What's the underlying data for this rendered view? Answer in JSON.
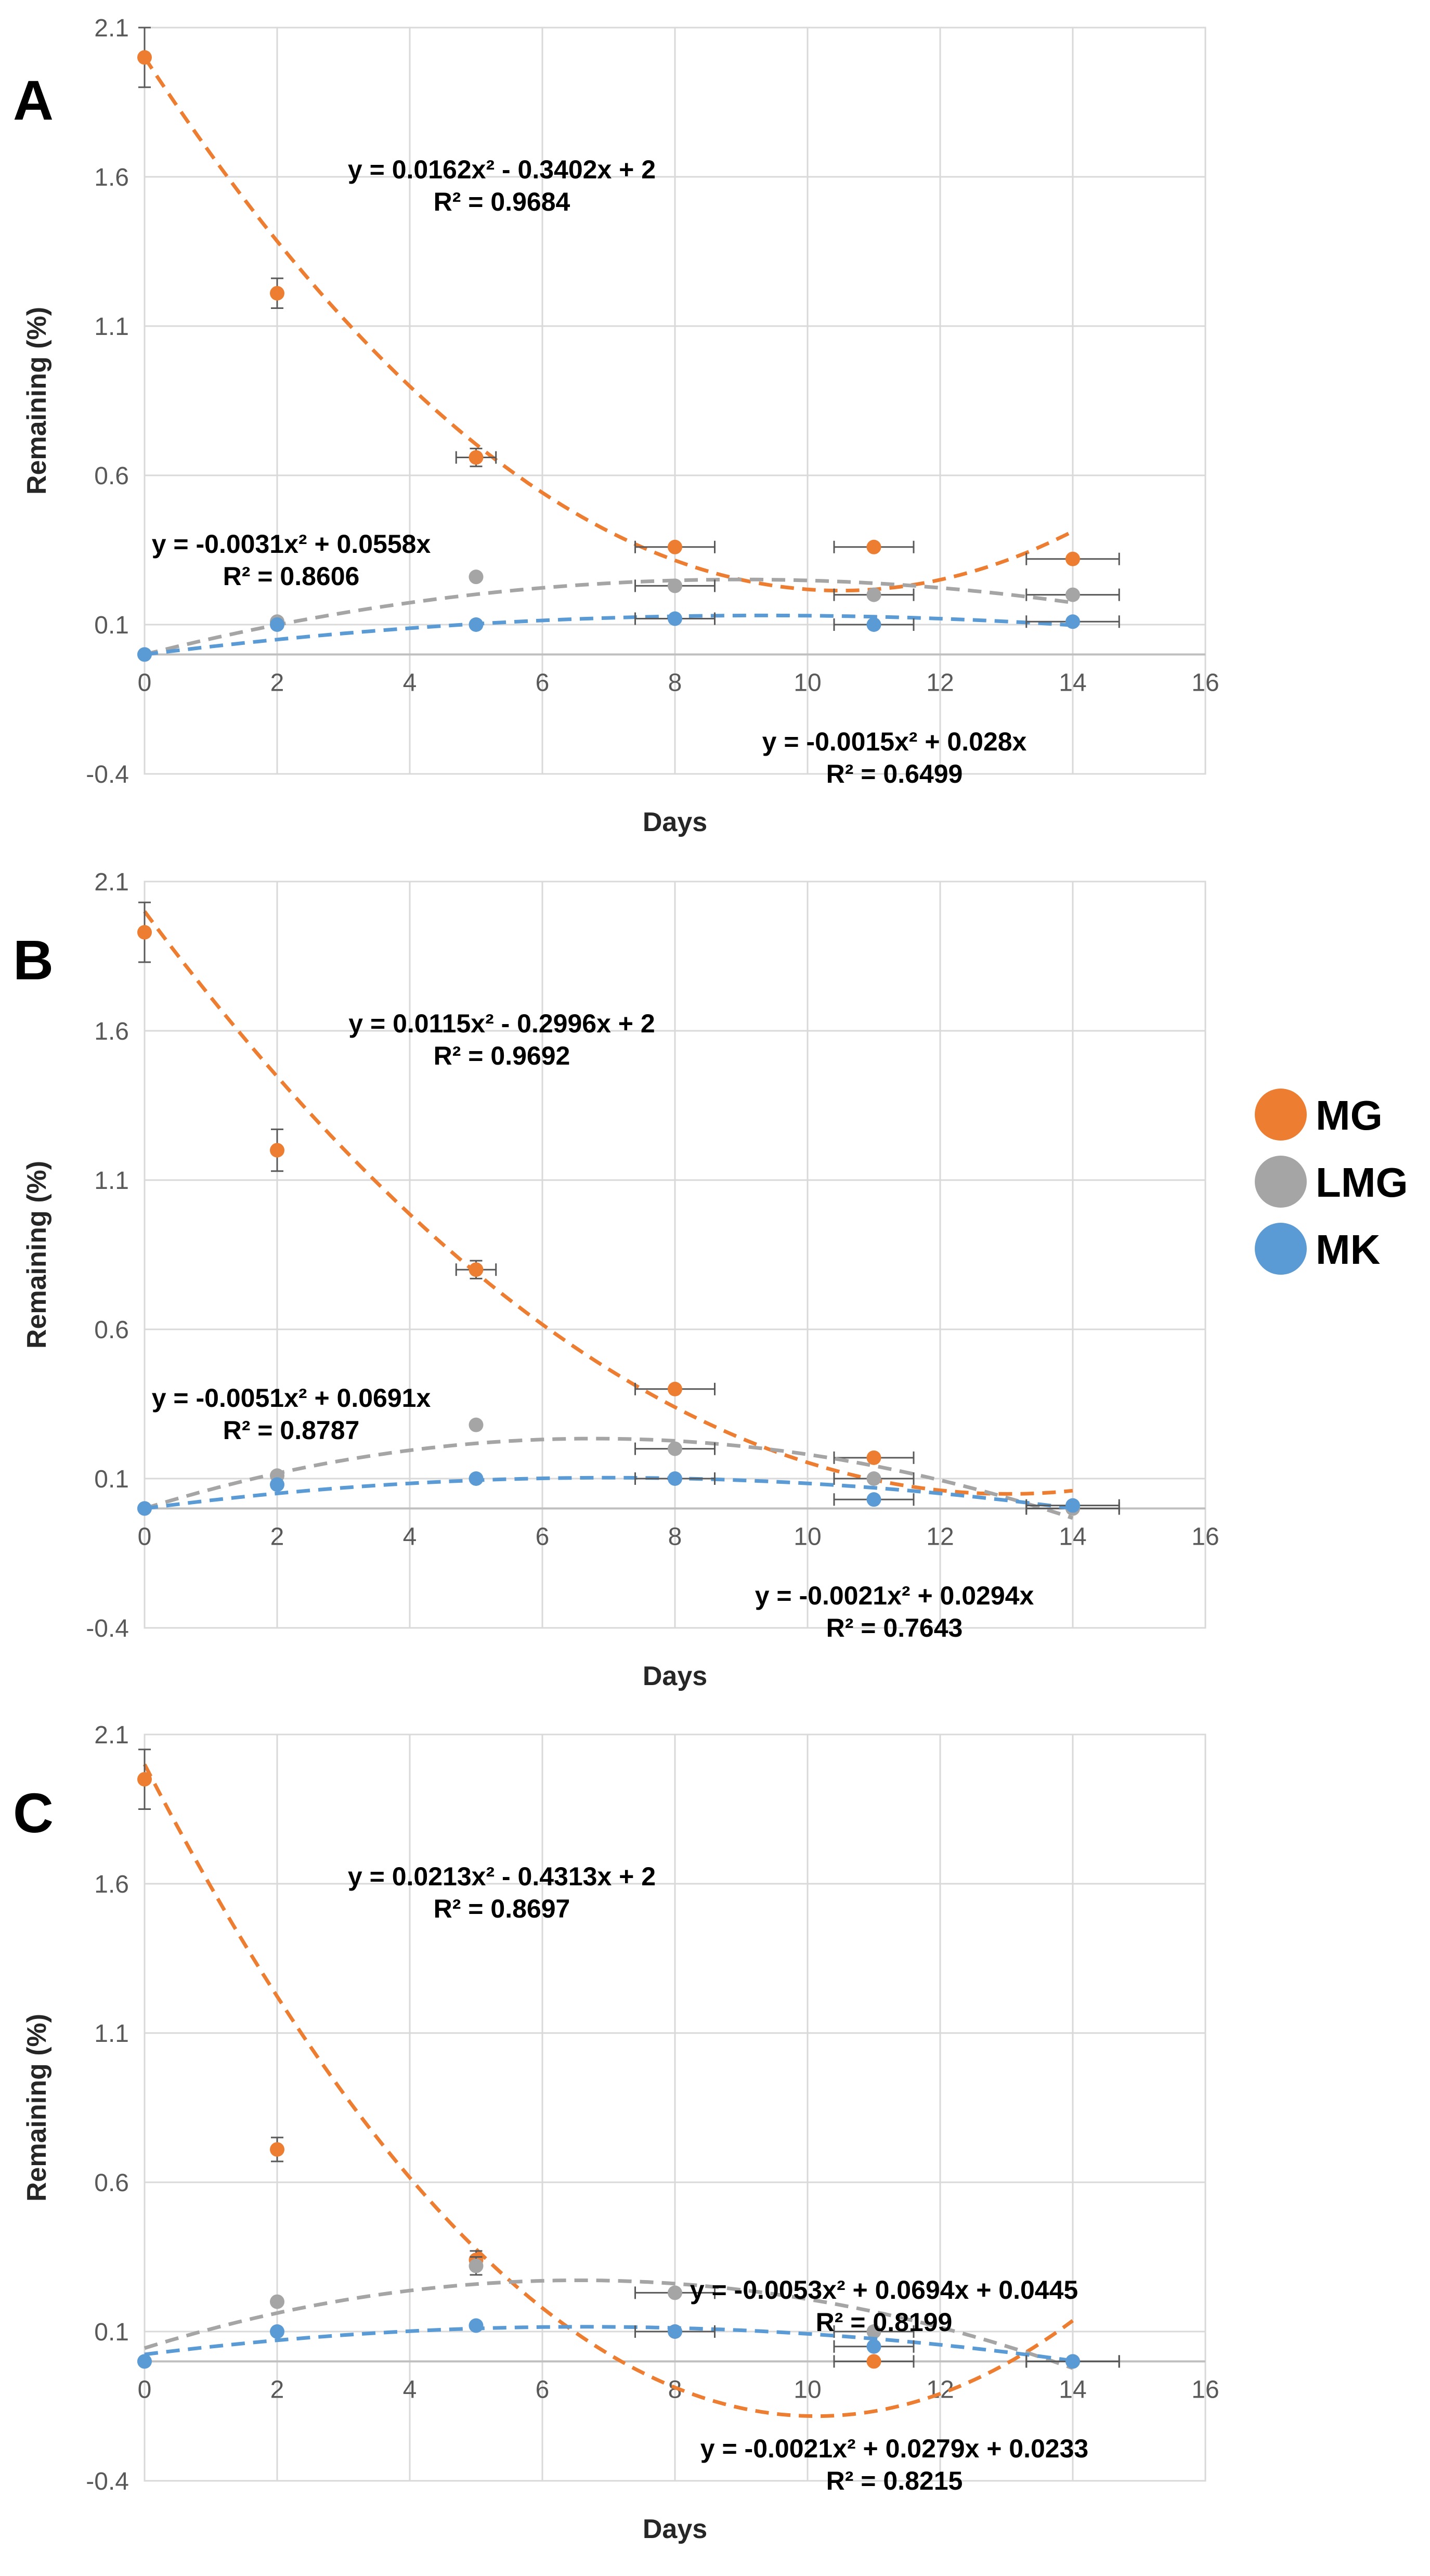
{
  "chart_data": [
    {
      "type": "scatter",
      "panel": "A",
      "xlabel": "Days",
      "ylabel": "Remaining (%)",
      "xlim": [
        0,
        16
      ],
      "ylim": [
        -0.4,
        2.1
      ],
      "xticks": [
        "0",
        "2",
        "4",
        "6",
        "8",
        "10",
        "12",
        "14",
        "16"
      ],
      "yticks": [
        "-0.4",
        "0.1",
        "0.6",
        "1.1",
        "1.6",
        "2.1"
      ],
      "grid": true,
      "series": [
        {
          "name": "MG",
          "color": "#ED7D31",
          "points": [
            {
              "x": 0,
              "y": 2.0,
              "ey": 0.1
            },
            {
              "x": 2,
              "y": 1.21,
              "ey": 0.05
            },
            {
              "x": 5,
              "y": 0.66,
              "ex": 0.3,
              "ey": 0.03
            },
            {
              "x": 8,
              "y": 0.36,
              "ex": 0.6
            },
            {
              "x": 11,
              "y": 0.36,
              "ex": 0.6
            },
            {
              "x": 14,
              "y": 0.32,
              "ex": 0.7
            }
          ],
          "fit": [
            0.0162,
            -0.3402,
            2
          ],
          "fit_range": [
            0,
            14
          ]
        },
        {
          "name": "LMG",
          "color": "#A5A5A5",
          "points": [
            {
              "x": 0,
              "y": 0.0
            },
            {
              "x": 2,
              "y": 0.11
            },
            {
              "x": 5,
              "y": 0.26
            },
            {
              "x": 8,
              "y": 0.23,
              "ex": 0.6
            },
            {
              "x": 11,
              "y": 0.2,
              "ex": 0.6
            },
            {
              "x": 14,
              "y": 0.2,
              "ex": 0.7
            }
          ],
          "fit": [
            -0.0031,
            0.0558,
            0
          ],
          "fit_range": [
            0,
            14
          ]
        },
        {
          "name": "MK",
          "color": "#5B9BD5",
          "points": [
            {
              "x": 0,
              "y": 0.0
            },
            {
              "x": 2,
              "y": 0.1
            },
            {
              "x": 5,
              "y": 0.1
            },
            {
              "x": 8,
              "y": 0.12,
              "ex": 0.6
            },
            {
              "x": 11,
              "y": 0.1,
              "ex": 0.6
            },
            {
              "x": 14,
              "y": 0.11,
              "ex": 0.7
            }
          ],
          "fit": [
            -0.0015,
            0.028,
            0
          ],
          "fit_range": [
            0,
            14
          ]
        }
      ],
      "equations": [
        {
          "line1": "y = 0.0162x² - 0.3402x + 2",
          "line2": "R² = 0.9684",
          "color": "#000000",
          "pos": "upper-middle"
        },
        {
          "line1": "y = -0.0031x² + 0.0558x",
          "line2": "R² = 0.8606",
          "color": "#000000",
          "pos": "left"
        },
        {
          "line1": "y = -0.0015x² + 0.028x",
          "line2": "R² = 0.6499",
          "color": "#000000",
          "pos": "bottom-right"
        }
      ]
    },
    {
      "type": "scatter",
      "panel": "B",
      "xlabel": "Days",
      "ylabel": "Remaining (%)",
      "xlim": [
        0,
        16
      ],
      "ylim": [
        -0.4,
        2.1
      ],
      "xticks": [
        "0",
        "2",
        "4",
        "6",
        "8",
        "10",
        "12",
        "14",
        "16"
      ],
      "yticks": [
        "-0.4",
        "0.1",
        "0.6",
        "1.1",
        "1.6",
        "2.1"
      ],
      "grid": true,
      "series": [
        {
          "name": "MG",
          "color": "#ED7D31",
          "points": [
            {
              "x": 0,
              "y": 1.93,
              "ey": 0.1
            },
            {
              "x": 2,
              "y": 1.2,
              "ey": 0.07
            },
            {
              "x": 5,
              "y": 0.8,
              "ex": 0.3,
              "ey": 0.03
            },
            {
              "x": 8,
              "y": 0.4,
              "ex": 0.6
            },
            {
              "x": 11,
              "y": 0.17,
              "ex": 0.6
            },
            {
              "x": 14,
              "y": 0.0,
              "ex": 0.7
            }
          ],
          "fit": [
            0.0115,
            -0.2996,
            2
          ],
          "fit_range": [
            0,
            14
          ]
        },
        {
          "name": "LMG",
          "color": "#A5A5A5",
          "points": [
            {
              "x": 0,
              "y": 0.0
            },
            {
              "x": 2,
              "y": 0.11
            },
            {
              "x": 5,
              "y": 0.28
            },
            {
              "x": 8,
              "y": 0.2,
              "ex": 0.6
            },
            {
              "x": 11,
              "y": 0.1,
              "ex": 0.6
            },
            {
              "x": 14,
              "y": 0.0,
              "ex": 0.7
            }
          ],
          "fit": [
            -0.0051,
            0.0691,
            0
          ],
          "fit_range": [
            0,
            14
          ]
        },
        {
          "name": "MK",
          "color": "#5B9BD5",
          "points": [
            {
              "x": 0,
              "y": 0.0
            },
            {
              "x": 2,
              "y": 0.08
            },
            {
              "x": 5,
              "y": 0.1
            },
            {
              "x": 8,
              "y": 0.1,
              "ex": 0.6
            },
            {
              "x": 11,
              "y": 0.03,
              "ex": 0.6
            },
            {
              "x": 14,
              "y": 0.01,
              "ex": 0.7
            }
          ],
          "fit": [
            -0.0021,
            0.0294,
            0
          ],
          "fit_range": [
            0,
            14
          ]
        }
      ],
      "equations": [
        {
          "line1": "y = 0.0115x² - 0.2996x + 2",
          "line2": "R² = 0.9692",
          "color": "#000000",
          "pos": "upper-middle"
        },
        {
          "line1": "y = -0.0051x² + 0.0691x",
          "line2": "R² = 0.8787",
          "color": "#000000",
          "pos": "left"
        },
        {
          "line1": "y = -0.0021x² + 0.0294x",
          "line2": "R² = 0.7643",
          "color": "#000000",
          "pos": "bottom-right"
        }
      ]
    },
    {
      "type": "scatter",
      "panel": "C",
      "xlabel": "Days",
      "ylabel": "Remaining (%)",
      "xlim": [
        0,
        16
      ],
      "ylim": [
        -0.4,
        2.1
      ],
      "xticks": [
        "0",
        "2",
        "4",
        "6",
        "8",
        "10",
        "12",
        "14",
        "16"
      ],
      "yticks": [
        "-0.4",
        "0.1",
        "0.6",
        "1.1",
        "1.6",
        "2.1"
      ],
      "grid": true,
      "series": [
        {
          "name": "MG",
          "color": "#ED7D31",
          "points": [
            {
              "x": 0,
              "y": 1.95,
              "ey": 0.1
            },
            {
              "x": 2,
              "y": 0.71,
              "ey": 0.04
            },
            {
              "x": 5,
              "y": 0.34,
              "ey": 0.03
            },
            {
              "x": 8,
              "y": 0.1,
              "ex": 0.6
            },
            {
              "x": 11,
              "y": 0.0,
              "ex": 0.6
            },
            {
              "x": 14,
              "y": 0.0,
              "ex": 0.7
            }
          ],
          "fit": [
            0.0213,
            -0.4313,
            2
          ],
          "fit_range": [
            0,
            14
          ]
        },
        {
          "name": "LMG",
          "color": "#A5A5A5",
          "points": [
            {
              "x": 0,
              "y": 0.0
            },
            {
              "x": 2,
              "y": 0.2
            },
            {
              "x": 5,
              "y": 0.32,
              "ey": 0.03
            },
            {
              "x": 8,
              "y": 0.23,
              "ex": 0.6
            },
            {
              "x": 11,
              "y": 0.1,
              "ex": 0.6
            },
            {
              "x": 14,
              "y": 0.0,
              "ex": 0.7
            }
          ],
          "fit": [
            -0.0053,
            0.0694,
            0.0445
          ],
          "fit_range": [
            0,
            14
          ]
        },
        {
          "name": "MK",
          "color": "#5B9BD5",
          "points": [
            {
              "x": 0,
              "y": 0.0
            },
            {
              "x": 2,
              "y": 0.1
            },
            {
              "x": 5,
              "y": 0.12
            },
            {
              "x": 8,
              "y": 0.1,
              "ex": 0.6
            },
            {
              "x": 11,
              "y": 0.05,
              "ex": 0.6
            },
            {
              "x": 14,
              "y": 0.0,
              "ex": 0.7
            }
          ],
          "fit": [
            -0.0021,
            0.0279,
            0.0233
          ],
          "fit_range": [
            0,
            14
          ]
        }
      ],
      "equations": [
        {
          "line1": "y = 0.0213x² - 0.4313x + 2",
          "line2": "R² = 0.8697",
          "color": "#000000",
          "pos": "upper-middle"
        },
        {
          "line1": "y = -0.0053x² + 0.0694x + 0.0445",
          "line2": "R² = 0.8199",
          "color": "#000000",
          "pos": "middle-right"
        },
        {
          "line1": "y = -0.0021x² + 0.0279x + 0.0233",
          "line2": "R² = 0.8215",
          "color": "#000000",
          "pos": "bottom-right"
        }
      ]
    }
  ],
  "legend": {
    "items": [
      {
        "label": "MG",
        "color": "#ED7D31"
      },
      {
        "label": "LMG",
        "color": "#A5A5A5"
      },
      {
        "label": "MK",
        "color": "#5B9BD5"
      }
    ]
  }
}
